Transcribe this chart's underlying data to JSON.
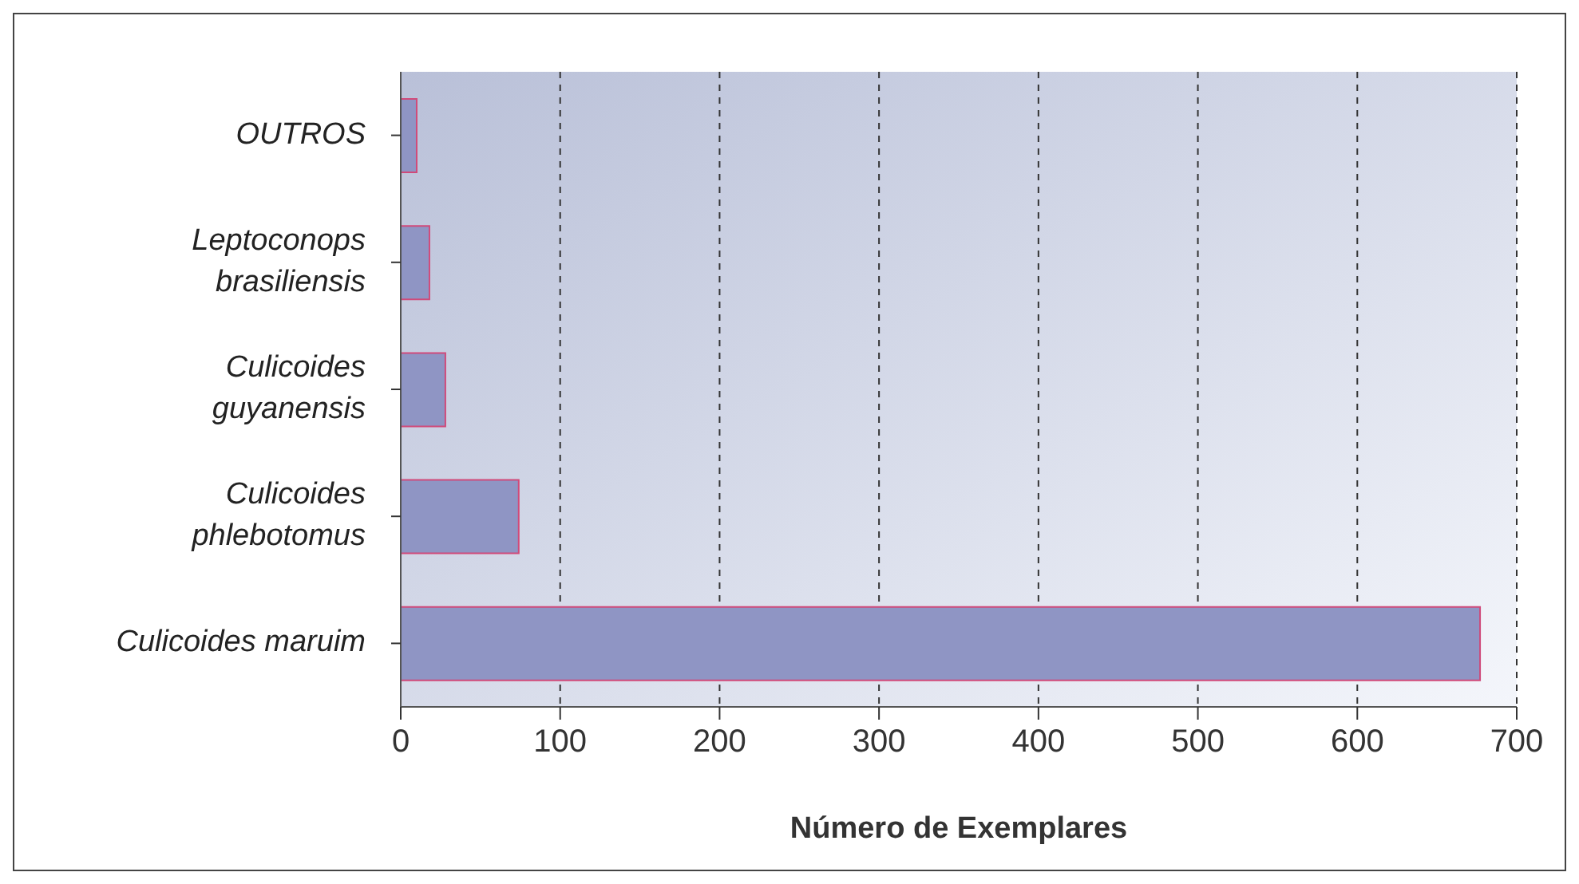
{
  "chart_data": {
    "type": "bar",
    "orientation": "horizontal",
    "xlabel": "Número de Exemplares",
    "categories": [
      "OUTROS",
      "Leptoconops brasiliensis",
      "Culicoides guyanensis",
      "Culicoides phlebotomus",
      "Culicoides maruim"
    ],
    "values": [
      10,
      18,
      28,
      74,
      677
    ],
    "color": "#8f95c4",
    "xlim": [
      0,
      700
    ],
    "xticks": [
      0,
      100,
      200,
      300,
      400,
      500,
      600,
      700
    ],
    "grid": "x"
  }
}
